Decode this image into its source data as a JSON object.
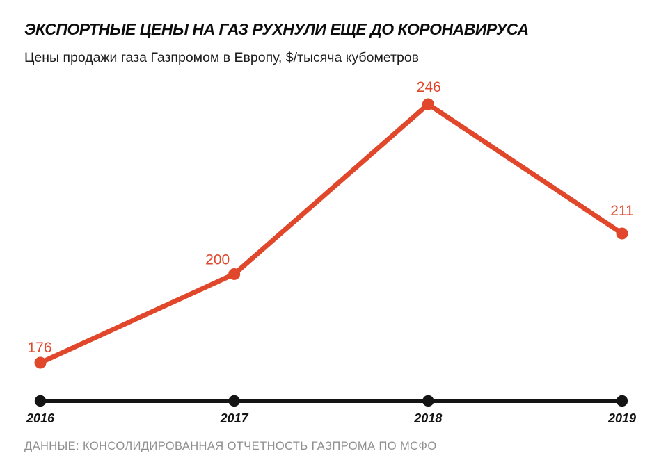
{
  "chart_data": {
    "type": "line",
    "title": "ЭКСПОРТНЫЕ ЦЕНЫ НА ГАЗ РУХНУЛИ ЕЩЕ ДО КОРОНАВИРУСА",
    "subtitle": "Цены продажи газа Газпромом в Европу, $/тысяча кубометров",
    "source": "ДАННЫЕ: КОНСОЛИДИРОВАННАЯ ОТЧЕТНОСТЬ ГАЗПРОМА ПО МСФО",
    "categories": [
      "2016",
      "2017",
      "2018",
      "2019"
    ],
    "values": [
      176,
      200,
      246,
      211
    ],
    "data_labels": [
      "176",
      "200",
      "246",
      "211"
    ],
    "xlabel": "",
    "ylabel": "$/тысяча кубометров",
    "ylim": [
      176,
      246
    ],
    "grid": false,
    "legend": false,
    "colors": {
      "line": "#E0472B",
      "point": "#E0472B",
      "value_label": "#E0472B",
      "axis": "#141414",
      "year_label": "#141414",
      "source_text": "#8F8F8F"
    }
  }
}
